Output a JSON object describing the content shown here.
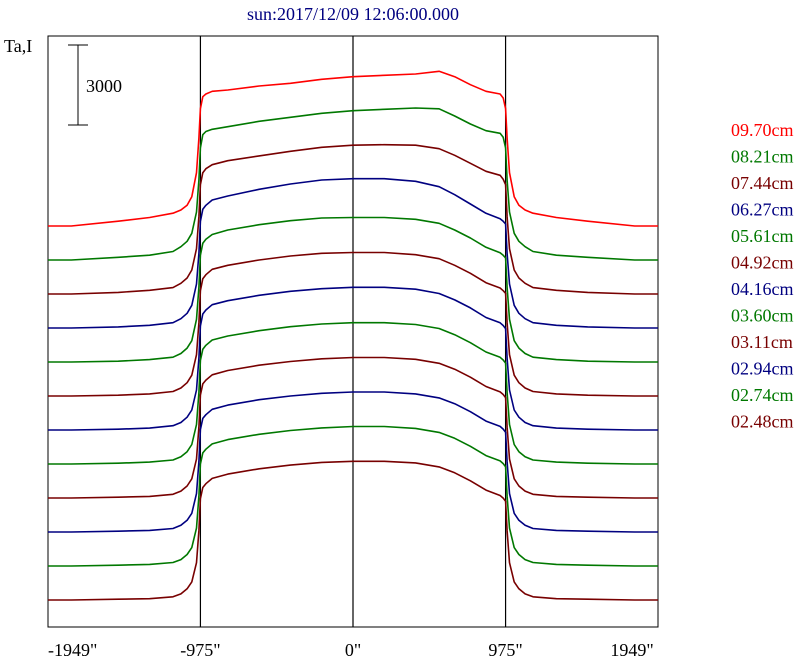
{
  "chart_data": {
    "type": "line",
    "title": "sun:2017/12/09 12:06:00.000",
    "ylabel": "Ta,I",
    "xlabel": "",
    "xlim": [
      -1949,
      1949
    ],
    "x_ticks": [
      {
        "value": -1949,
        "label": "-1949\""
      },
      {
        "value": -975,
        "label": "-975\""
      },
      {
        "value": 0,
        "label": "0\""
      },
      {
        "value": 975,
        "label": "975\""
      },
      {
        "value": 1949,
        "label": "1949\""
      }
    ],
    "vertical_lines": [
      -975,
      0,
      975
    ],
    "scale_bar": {
      "value": 3000,
      "label": "3000"
    },
    "legend_position": "right",
    "grid": false,
    "x": [
      -1949,
      -1800,
      -1500,
      -1300,
      -1150,
      -1100,
      -1060,
      -1030,
      -1000,
      -985,
      -975,
      -960,
      -940,
      -900,
      -800,
      -600,
      -400,
      -200,
      0,
      200,
      400,
      550,
      650,
      750,
      850,
      940,
      960,
      975,
      985,
      1000,
      1030,
      1060,
      1100,
      1150,
      1300,
      1500,
      1800,
      1949
    ],
    "series": [
      {
        "name": "09.70cm",
        "color": "#ff0000",
        "values": [
          200,
          200,
          380,
          520,
          680,
          800,
          980,
          1300,
          2200,
          3500,
          4600,
          5050,
          5150,
          5250,
          5300,
          5450,
          5550,
          5700,
          5800,
          5850,
          5900,
          6000,
          5800,
          5500,
          5250,
          5150,
          5000,
          4600,
          3500,
          2200,
          1300,
          980,
          800,
          680,
          520,
          380,
          200,
          200
        ]
      },
      {
        "name": "08.21cm",
        "color": "#007800",
        "values": [
          200,
          200,
          300,
          380,
          520,
          700,
          900,
          1200,
          2000,
          3200,
          4400,
          4900,
          5020,
          5100,
          5200,
          5400,
          5550,
          5700,
          5800,
          5850,
          5900,
          5870,
          5600,
          5300,
          5050,
          4950,
          4800,
          4400,
          3200,
          2000,
          1200,
          900,
          700,
          520,
          380,
          300,
          200,
          200
        ]
      },
      {
        "name": "07.44cm",
        "color": "#780000",
        "values": [
          200,
          200,
          260,
          340,
          440,
          600,
          800,
          1100,
          1900,
          3100,
          4300,
          4750,
          4900,
          5050,
          5200,
          5380,
          5550,
          5700,
          5780,
          5800,
          5780,
          5650,
          5400,
          5100,
          4800,
          4650,
          4500,
          4300,
          3100,
          1900,
          1100,
          800,
          600,
          440,
          340,
          260,
          200,
          200
        ]
      },
      {
        "name": "06.27cm",
        "color": "#000080",
        "values": [
          200,
          200,
          240,
          300,
          400,
          550,
          750,
          1050,
          1850,
          3000,
          4200,
          4650,
          4800,
          5000,
          5150,
          5400,
          5600,
          5750,
          5800,
          5800,
          5700,
          5500,
          5200,
          4850,
          4500,
          4300,
          4200,
          4100,
          3000,
          1850,
          1050,
          750,
          550,
          400,
          300,
          240,
          200,
          200
        ]
      },
      {
        "name": "05.61cm",
        "color": "#007800",
        "values": [
          200,
          200,
          230,
          290,
          380,
          520,
          720,
          1000,
          1800,
          3000,
          4200,
          4650,
          4800,
          4980,
          5150,
          5350,
          5500,
          5600,
          5620,
          5620,
          5550,
          5400,
          5150,
          4850,
          4500,
          4300,
          4200,
          4100,
          3000,
          1800,
          1000,
          720,
          520,
          380,
          290,
          230,
          200,
          200
        ]
      },
      {
        "name": "04.92cm",
        "color": "#780000",
        "values": [
          200,
          200,
          230,
          280,
          370,
          500,
          700,
          980,
          1750,
          2950,
          4150,
          4600,
          4750,
          4950,
          5100,
          5300,
          5450,
          5550,
          5580,
          5580,
          5500,
          5350,
          5100,
          4800,
          4450,
          4250,
          4150,
          4050,
          2950,
          1750,
          980,
          700,
          500,
          370,
          280,
          230,
          200,
          200
        ]
      },
      {
        "name": "04.16cm",
        "color": "#000080",
        "values": [
          200,
          200,
          230,
          270,
          360,
          480,
          680,
          950,
          1700,
          2900,
          4100,
          4550,
          4700,
          4900,
          5050,
          5250,
          5400,
          5500,
          5550,
          5550,
          5480,
          5320,
          5080,
          4780,
          4420,
          4220,
          4120,
          4000,
          2900,
          1700,
          950,
          680,
          480,
          360,
          270,
          230,
          200,
          200
        ]
      },
      {
        "name": "03.60cm",
        "color": "#007800",
        "values": [
          200,
          200,
          230,
          270,
          350,
          470,
          660,
          930,
          1680,
          2880,
          4080,
          4500,
          4650,
          4850,
          5000,
          5200,
          5350,
          5450,
          5500,
          5500,
          5430,
          5280,
          5050,
          4750,
          4400,
          4200,
          4100,
          3980,
          2880,
          1680,
          930,
          660,
          470,
          350,
          270,
          230,
          200,
          200
        ]
      },
      {
        "name": "03.11cm",
        "color": "#780000",
        "values": [
          200,
          200,
          230,
          260,
          340,
          460,
          650,
          920,
          1660,
          2860,
          4060,
          4480,
          4620,
          4820,
          4980,
          5180,
          5320,
          5420,
          5470,
          5470,
          5400,
          5250,
          5030,
          4730,
          4380,
          4180,
          4080,
          3960,
          2860,
          1660,
          920,
          650,
          460,
          340,
          260,
          230,
          200,
          200
        ]
      },
      {
        "name": "02.94cm",
        "color": "#000080",
        "values": [
          200,
          200,
          230,
          260,
          330,
          450,
          640,
          900,
          1640,
          2840,
          4040,
          4460,
          4600,
          4800,
          4960,
          5160,
          5300,
          5400,
          5450,
          5450,
          5380,
          5230,
          5010,
          4710,
          4360,
          4160,
          4060,
          3940,
          2840,
          1640,
          900,
          640,
          450,
          330,
          260,
          230,
          200,
          200
        ]
      },
      {
        "name": "02.74cm",
        "color": "#007800",
        "values": [
          200,
          200,
          230,
          260,
          330,
          440,
          630,
          890,
          1620,
          2820,
          4020,
          4440,
          4580,
          4780,
          4940,
          5140,
          5280,
          5380,
          5430,
          5430,
          5360,
          5210,
          4990,
          4690,
          4340,
          4140,
          4040,
          3920,
          2820,
          1620,
          890,
          630,
          440,
          330,
          260,
          230,
          200,
          200
        ]
      },
      {
        "name": "02.48cm",
        "color": "#780000",
        "values": [
          200,
          200,
          230,
          250,
          320,
          430,
          620,
          880,
          1600,
          2800,
          4000,
          4420,
          4560,
          4760,
          4920,
          5120,
          5260,
          5360,
          5400,
          5400,
          5340,
          5190,
          4970,
          4670,
          4320,
          4120,
          4020,
          3900,
          2800,
          1600,
          880,
          620,
          430,
          320,
          250,
          230,
          200,
          200
        ]
      }
    ]
  }
}
